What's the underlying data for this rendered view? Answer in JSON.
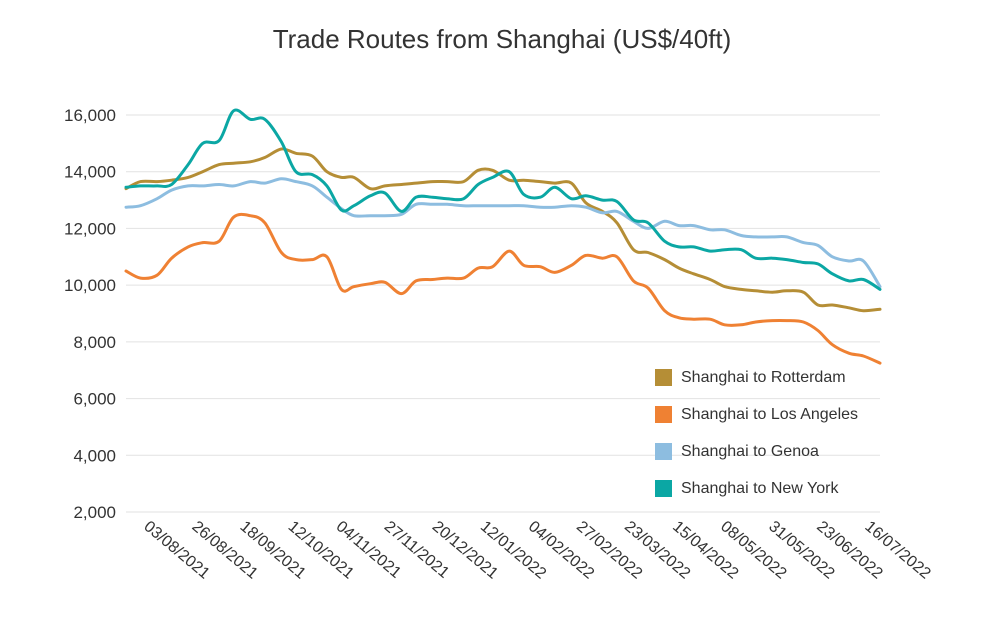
{
  "chart_data": {
    "type": "line",
    "title": "Trade Routes from Shanghai (US$/40ft)",
    "xlabel": "",
    "ylabel": "",
    "ylim": [
      2000,
      16500
    ],
    "y_ticks": [
      "16,000",
      "14,000",
      "12,000",
      "10,000",
      "8,000",
      "6,000",
      "4,000",
      "2,000"
    ],
    "y_tick_values": [
      16000,
      14000,
      12000,
      10000,
      8000,
      6000,
      4000,
      2000
    ],
    "x_range": [
      "2021-07-22",
      "2022-07-21"
    ],
    "x_ticks": [
      "03/08/2021",
      "26/08/2021",
      "18/09/2021",
      "12/10/2021",
      "04/11/2021",
      "27/11/2021",
      "20/12/2021",
      "12/01/2022",
      "04/02/2022",
      "27/02/2022",
      "23/03/2022",
      "15/04/2022",
      "08/05/2022",
      "31/05/2022",
      "23/06/2022",
      "16/07/2022"
    ],
    "grid": true,
    "legend_position": "bottom-right",
    "series": [
      {
        "name": "Shanghai to Rotterdam",
        "color": "#b58e36",
        "points": [
          [
            "2021-07-22",
            13400
          ],
          [
            "2021-07-29",
            13650
          ],
          [
            "2021-08-06",
            13650
          ],
          [
            "2021-08-13",
            13700
          ],
          [
            "2021-08-21",
            13800
          ],
          [
            "2021-08-28",
            14000
          ],
          [
            "2021-09-05",
            14250
          ],
          [
            "2021-09-12",
            14300
          ],
          [
            "2021-09-20",
            14350
          ],
          [
            "2021-09-27",
            14500
          ],
          [
            "2021-10-05",
            14800
          ],
          [
            "2021-10-12",
            14650
          ],
          [
            "2021-10-20",
            14550
          ],
          [
            "2021-10-27",
            14000
          ],
          [
            "2021-11-03",
            13800
          ],
          [
            "2021-11-09",
            13800
          ],
          [
            "2021-11-17",
            13400
          ],
          [
            "2021-11-24",
            13500
          ],
          [
            "2021-12-02",
            13550
          ],
          [
            "2021-12-09",
            13600
          ],
          [
            "2021-12-17",
            13650
          ],
          [
            "2021-12-24",
            13650
          ],
          [
            "2022-01-01",
            13650
          ],
          [
            "2022-01-08",
            14050
          ],
          [
            "2022-01-15",
            14050
          ],
          [
            "2022-01-23",
            13700
          ],
          [
            "2022-01-30",
            13700
          ],
          [
            "2022-02-07",
            13650
          ],
          [
            "2022-02-14",
            13600
          ],
          [
            "2022-02-22",
            13600
          ],
          [
            "2022-03-01",
            12900
          ],
          [
            "2022-03-09",
            12600
          ],
          [
            "2022-03-16",
            12200
          ],
          [
            "2022-03-24",
            11250
          ],
          [
            "2022-03-31",
            11150
          ],
          [
            "2022-04-08",
            10900
          ],
          [
            "2022-04-15",
            10600
          ],
          [
            "2022-04-22",
            10400
          ],
          [
            "2022-04-30",
            10200
          ],
          [
            "2022-05-07",
            9950
          ],
          [
            "2022-05-15",
            9850
          ],
          [
            "2022-05-22",
            9800
          ],
          [
            "2022-05-30",
            9750
          ],
          [
            "2022-06-06",
            9800
          ],
          [
            "2022-06-14",
            9750
          ],
          [
            "2022-06-21",
            9300
          ],
          [
            "2022-06-28",
            9300
          ],
          [
            "2022-07-06",
            9200
          ],
          [
            "2022-07-13",
            9100
          ],
          [
            "2022-07-21",
            9150
          ]
        ]
      },
      {
        "name": "Shanghai to Los Angeles",
        "color": "#ef8133",
        "points": [
          [
            "2021-07-22",
            10500
          ],
          [
            "2021-07-29",
            10250
          ],
          [
            "2021-08-06",
            10350
          ],
          [
            "2021-08-13",
            10950
          ],
          [
            "2021-08-21",
            11350
          ],
          [
            "2021-08-28",
            11500
          ],
          [
            "2021-09-05",
            11550
          ],
          [
            "2021-09-12",
            12400
          ],
          [
            "2021-09-20",
            12450
          ],
          [
            "2021-09-27",
            12200
          ],
          [
            "2021-10-05",
            11150
          ],
          [
            "2021-10-12",
            10900
          ],
          [
            "2021-10-20",
            10900
          ],
          [
            "2021-10-27",
            11000
          ],
          [
            "2021-11-03",
            9850
          ],
          [
            "2021-11-09",
            9950
          ],
          [
            "2021-11-17",
            10050
          ],
          [
            "2021-11-24",
            10100
          ],
          [
            "2021-12-02",
            9700
          ],
          [
            "2021-12-09",
            10150
          ],
          [
            "2021-12-17",
            10200
          ],
          [
            "2021-12-24",
            10250
          ],
          [
            "2022-01-01",
            10250
          ],
          [
            "2022-01-08",
            10600
          ],
          [
            "2022-01-15",
            10650
          ],
          [
            "2022-01-23",
            11200
          ],
          [
            "2022-01-30",
            10700
          ],
          [
            "2022-02-07",
            10650
          ],
          [
            "2022-02-14",
            10450
          ],
          [
            "2022-02-22",
            10700
          ],
          [
            "2022-03-01",
            11050
          ],
          [
            "2022-03-09",
            10950
          ],
          [
            "2022-03-16",
            11000
          ],
          [
            "2022-03-24",
            10150
          ],
          [
            "2022-03-31",
            9900
          ],
          [
            "2022-04-08",
            9100
          ],
          [
            "2022-04-15",
            8850
          ],
          [
            "2022-04-22",
            8800
          ],
          [
            "2022-04-30",
            8800
          ],
          [
            "2022-05-07",
            8600
          ],
          [
            "2022-05-15",
            8600
          ],
          [
            "2022-05-22",
            8700
          ],
          [
            "2022-05-30",
            8750
          ],
          [
            "2022-06-06",
            8750
          ],
          [
            "2022-06-14",
            8700
          ],
          [
            "2022-06-21",
            8400
          ],
          [
            "2022-06-28",
            7900
          ],
          [
            "2022-07-06",
            7600
          ],
          [
            "2022-07-13",
            7500
          ],
          [
            "2022-07-21",
            7250
          ]
        ]
      },
      {
        "name": "Shanghai to Genoa",
        "color": "#8dbde0",
        "points": [
          [
            "2021-07-22",
            12750
          ],
          [
            "2021-07-29",
            12800
          ],
          [
            "2021-08-06",
            13050
          ],
          [
            "2021-08-13",
            13350
          ],
          [
            "2021-08-21",
            13500
          ],
          [
            "2021-08-28",
            13500
          ],
          [
            "2021-09-05",
            13550
          ],
          [
            "2021-09-12",
            13500
          ],
          [
            "2021-09-20",
            13650
          ],
          [
            "2021-09-27",
            13600
          ],
          [
            "2021-10-05",
            13750
          ],
          [
            "2021-10-12",
            13650
          ],
          [
            "2021-10-20",
            13500
          ],
          [
            "2021-10-27",
            13100
          ],
          [
            "2021-11-03",
            12700
          ],
          [
            "2021-11-09",
            12450
          ],
          [
            "2021-11-17",
            12450
          ],
          [
            "2021-11-24",
            12450
          ],
          [
            "2021-12-02",
            12500
          ],
          [
            "2021-12-09",
            12850
          ],
          [
            "2021-12-17",
            12850
          ],
          [
            "2021-12-24",
            12850
          ],
          [
            "2022-01-01",
            12800
          ],
          [
            "2022-01-08",
            12800
          ],
          [
            "2022-01-15",
            12800
          ],
          [
            "2022-01-23",
            12800
          ],
          [
            "2022-01-30",
            12800
          ],
          [
            "2022-02-07",
            12750
          ],
          [
            "2022-02-14",
            12750
          ],
          [
            "2022-02-22",
            12800
          ],
          [
            "2022-03-01",
            12750
          ],
          [
            "2022-03-09",
            12550
          ],
          [
            "2022-03-16",
            12600
          ],
          [
            "2022-03-24",
            12250
          ],
          [
            "2022-03-31",
            12000
          ],
          [
            "2022-04-08",
            12250
          ],
          [
            "2022-04-15",
            12100
          ],
          [
            "2022-04-22",
            12100
          ],
          [
            "2022-04-30",
            11950
          ],
          [
            "2022-05-07",
            11950
          ],
          [
            "2022-05-15",
            11750
          ],
          [
            "2022-05-22",
            11700
          ],
          [
            "2022-05-30",
            11700
          ],
          [
            "2022-06-06",
            11700
          ],
          [
            "2022-06-14",
            11500
          ],
          [
            "2022-06-21",
            11400
          ],
          [
            "2022-06-28",
            11000
          ],
          [
            "2022-07-06",
            10850
          ],
          [
            "2022-07-13",
            10850
          ],
          [
            "2022-07-21",
            9950
          ]
        ]
      },
      {
        "name": "Shanghai to New York",
        "color": "#0ba7a4",
        "points": [
          [
            "2021-07-22",
            13450
          ],
          [
            "2021-07-29",
            13500
          ],
          [
            "2021-08-06",
            13500
          ],
          [
            "2021-08-13",
            13550
          ],
          [
            "2021-08-21",
            14250
          ],
          [
            "2021-08-28",
            15000
          ],
          [
            "2021-09-05",
            15100
          ],
          [
            "2021-09-12",
            16150
          ],
          [
            "2021-09-20",
            15850
          ],
          [
            "2021-09-27",
            15850
          ],
          [
            "2021-10-05",
            15050
          ],
          [
            "2021-10-12",
            14000
          ],
          [
            "2021-10-20",
            13900
          ],
          [
            "2021-10-27",
            13500
          ],
          [
            "2021-11-03",
            12650
          ],
          [
            "2021-11-09",
            12800
          ],
          [
            "2021-11-17",
            13150
          ],
          [
            "2021-11-24",
            13250
          ],
          [
            "2021-12-02",
            12600
          ],
          [
            "2021-12-09",
            13100
          ],
          [
            "2021-12-17",
            13100
          ],
          [
            "2021-12-24",
            13050
          ],
          [
            "2022-01-01",
            13050
          ],
          [
            "2022-01-08",
            13550
          ],
          [
            "2022-01-15",
            13800
          ],
          [
            "2022-01-23",
            14000
          ],
          [
            "2022-01-30",
            13200
          ],
          [
            "2022-02-07",
            13100
          ],
          [
            "2022-02-14",
            13450
          ],
          [
            "2022-02-22",
            13050
          ],
          [
            "2022-03-01",
            13150
          ],
          [
            "2022-03-09",
            13000
          ],
          [
            "2022-03-16",
            12950
          ],
          [
            "2022-03-24",
            12300
          ],
          [
            "2022-03-31",
            12200
          ],
          [
            "2022-04-08",
            11550
          ],
          [
            "2022-04-15",
            11350
          ],
          [
            "2022-04-22",
            11350
          ],
          [
            "2022-04-30",
            11200
          ],
          [
            "2022-05-07",
            11250
          ],
          [
            "2022-05-15",
            11250
          ],
          [
            "2022-05-22",
            10950
          ],
          [
            "2022-05-30",
            10950
          ],
          [
            "2022-06-06",
            10900
          ],
          [
            "2022-06-14",
            10800
          ],
          [
            "2022-06-21",
            10750
          ],
          [
            "2022-06-28",
            10400
          ],
          [
            "2022-07-06",
            10150
          ],
          [
            "2022-07-13",
            10200
          ],
          [
            "2022-07-21",
            9850
          ]
        ]
      }
    ]
  }
}
